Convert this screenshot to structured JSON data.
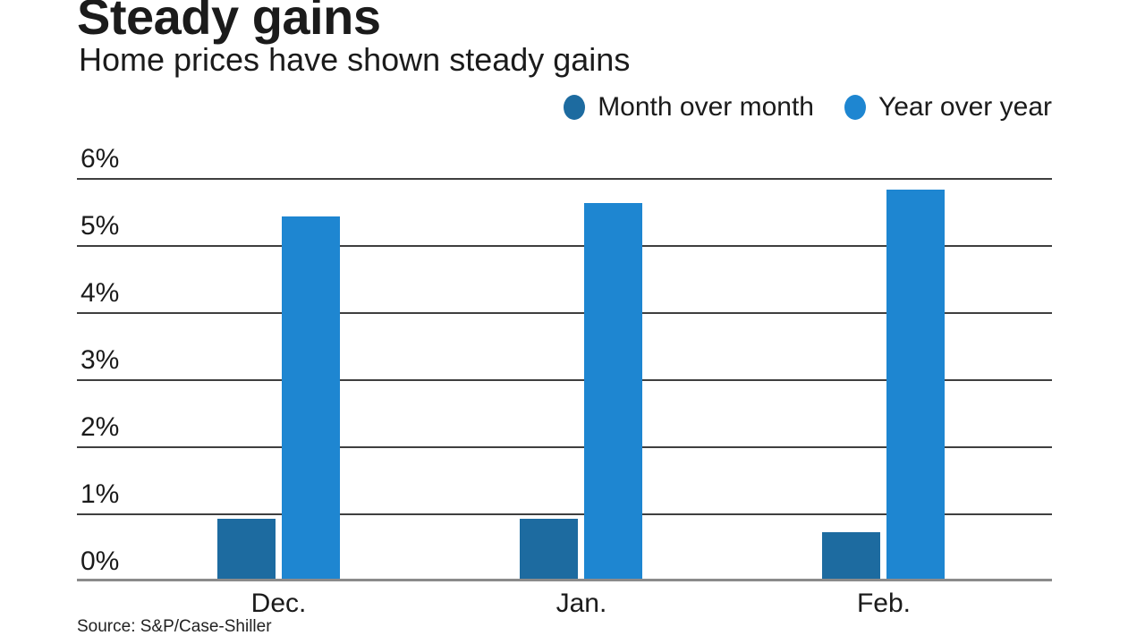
{
  "page": {
    "title": "Steady gains",
    "subtitle": "Home prices have shown steady gains",
    "source": "Source: S&P/Case-Shiller"
  },
  "legend": {
    "items": [
      {
        "label": "Month over month",
        "color": "#1d6ba0"
      },
      {
        "label": "Year over year",
        "color": "#1e86d1"
      }
    ]
  },
  "chart_data": {
    "type": "bar",
    "title": "Steady gains",
    "subtitle": "Home prices have shown steady gains",
    "categories": [
      "Dec.",
      "Jan.",
      "Feb."
    ],
    "series": [
      {
        "name": "Month over month",
        "color": "#1d6ba0",
        "values": [
          0.9,
          0.9,
          0.7
        ]
      },
      {
        "name": "Year over year",
        "color": "#1e86d1",
        "values": [
          5.4,
          5.6,
          5.8
        ]
      }
    ],
    "ylim": [
      0,
      6
    ],
    "yticks": [
      0,
      1,
      2,
      3,
      4,
      5,
      6
    ],
    "ytick_labels": [
      "0%",
      "1%",
      "2%",
      "3%",
      "4%",
      "5%",
      "6%"
    ],
    "grid": true,
    "legend_position": "top-right",
    "group_centers_frac": [
      0.2069,
      0.5174,
      0.8275
    ],
    "source": "Source: S&P/Case-Shiller"
  }
}
